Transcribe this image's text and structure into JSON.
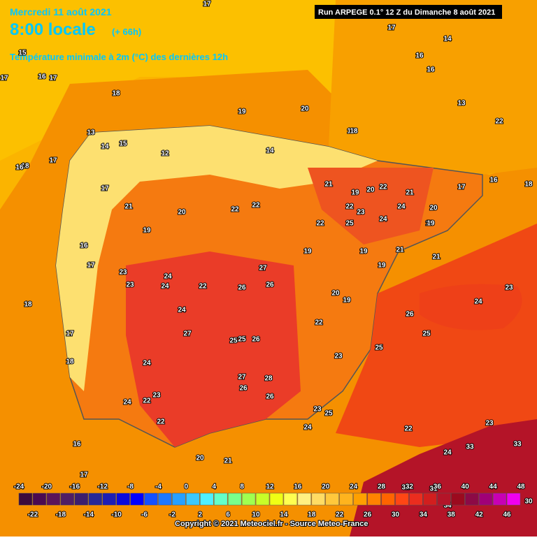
{
  "header": {
    "date": "Mercredi 11 août 2021",
    "time": "8:00 locale",
    "lead": "(+ 66h)",
    "variable": "Température minimale à 2m (°C) des dernières 12h"
  },
  "run": "Run ARPEGE 0.1° 12 Z du Dimanche 8 août 2021",
  "copyright": "Copyright © 2021 Meteociel.fr - Source Meteo-France",
  "legend": {
    "ticks": [
      -24,
      -22,
      -20,
      -18,
      -16,
      -14,
      -12,
      -10,
      -8,
      -6,
      -4,
      -2,
      0,
      2,
      4,
      6,
      8,
      10,
      12,
      14,
      16,
      18,
      20,
      22,
      24,
      26,
      28,
      30,
      32,
      34,
      36,
      38,
      40,
      42,
      44,
      46,
      48
    ],
    "colors": [
      "#3c0a3c",
      "#4b0a50",
      "#5a145a",
      "#501e64",
      "#3c1e6e",
      "#282896",
      "#1e1eb4",
      "#0a0adc",
      "#0000ff",
      "#1450ff",
      "#1e78ff",
      "#28a0ff",
      "#3cc8ff",
      "#50f0ff",
      "#64ffc8",
      "#78ff8c",
      "#a0ff50",
      "#c8ff28",
      "#f0ff14",
      "#ffff50",
      "#fff082",
      "#ffdc64",
      "#ffc83c",
      "#ffb41e",
      "#ffa000",
      "#ff8200",
      "#ff6400",
      "#ff4614",
      "#eb2d1e",
      "#d21e1e",
      "#b41428",
      "#9b0a1e",
      "#8c0a46",
      "#a00078",
      "#c800b4",
      "#f000f0"
    ]
  },
  "map_labels": [
    17,
    18,
    19,
    17,
    17,
    16,
    16,
    16,
    17,
    18,
    17,
    19,
    20,
    18,
    17,
    16,
    17,
    18,
    17,
    18,
    19,
    20,
    22,
    24,
    23,
    21,
    22,
    22,
    21,
    19,
    20,
    22,
    22,
    25,
    24,
    23,
    24,
    21,
    20,
    19,
    16,
    17,
    19,
    21,
    23,
    24,
    22,
    24,
    26,
    27,
    26,
    25,
    26,
    27,
    24,
    23,
    25,
    26,
    28,
    27,
    25,
    26,
    22,
    24,
    23,
    24,
    22,
    21,
    20,
    23,
    22,
    25,
    26,
    25,
    24,
    30,
    32,
    33,
    33,
    34,
    31,
    22,
    23,
    24,
    16,
    15,
    14,
    13,
    15,
    14,
    13,
    12,
    14,
    20,
    19,
    18,
    21,
    23,
    22,
    19,
    18,
    19,
    19,
    16,
    17
  ]
}
